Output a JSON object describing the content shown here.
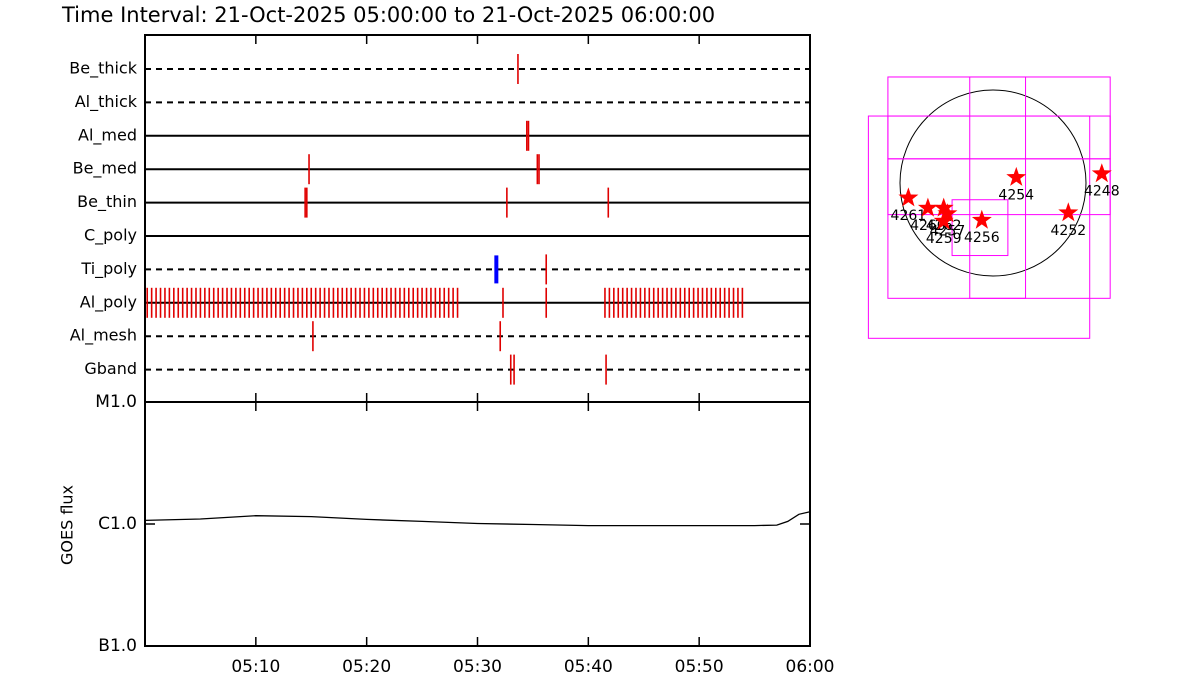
{
  "chart_data": [
    {
      "type": "timeline",
      "title": "Time Interval: 21-Oct-2025 05:00:00 to 21-Oct-2025 06:00:00",
      "xlim": [
        0,
        60
      ],
      "rows": [
        {
          "label": "Be_thick",
          "dashed": true,
          "groups": [
            {
              "color": "#e00000",
              "x": [
                33.65
              ]
            }
          ]
        },
        {
          "label": "Al_thick",
          "dashed": true,
          "groups": []
        },
        {
          "label": "Al_med",
          "dashed": false,
          "groups": [
            {
              "color": "#e00000",
              "x": [
                34.45,
                34.6
              ]
            }
          ]
        },
        {
          "label": "Be_med",
          "dashed": false,
          "groups": [
            {
              "color": "#e00000",
              "x": [
                14.8,
                35.4,
                35.55
              ]
            }
          ]
        },
        {
          "label": "Be_thin",
          "dashed": false,
          "groups": [
            {
              "color": "#e00000",
              "x": [
                14.45,
                14.6,
                32.65,
                41.8
              ]
            }
          ]
        },
        {
          "label": "C_poly",
          "dashed": false,
          "groups": []
        },
        {
          "label": "Ti_poly",
          "dashed": true,
          "groups": [
            {
              "color": "#0000ff",
              "x": [
                31.7
              ]
            },
            {
              "color": "#e00000",
              "x": [
                36.2
              ]
            }
          ]
        },
        {
          "label": "Al_poly",
          "dashed": false,
          "groups": [
            {
              "color": "#e00000",
              "x": [
                0.2,
                0.6,
                1,
                1.4,
                1.8,
                2.2,
                2.6,
                3,
                3.4,
                3.8,
                4.2,
                4.6,
                5,
                5.4,
                5.8,
                6.2,
                6.6,
                7,
                7.4,
                7.8,
                8.2,
                8.6,
                9,
                9.4,
                9.8,
                10.2,
                10.6,
                11,
                11.4,
                11.8,
                12.2,
                12.6,
                13,
                13.4,
                13.8,
                14.2,
                14.6,
                15,
                15.4,
                15.8,
                16.2,
                16.6,
                17,
                17.4,
                17.8,
                18.2,
                18.6,
                19,
                19.4,
                19.8,
                20.2,
                20.6,
                21,
                21.4,
                21.8,
                22.2,
                22.6,
                23,
                23.4,
                23.8,
                24.2,
                24.6,
                25,
                25.4,
                25.8,
                26.2,
                26.6,
                27,
                27.4,
                27.8,
                28.2,
                32.3,
                36.2,
                41.5,
                41.9,
                42.3,
                42.7,
                43.1,
                43.5,
                43.9,
                44.3,
                44.7,
                45.1,
                45.5,
                45.9,
                46.3,
                46.7,
                47.1,
                47.5,
                47.9,
                48.3,
                48.7,
                49.1,
                49.5,
                49.9,
                50.3,
                50.7,
                51.1,
                51.5,
                51.9,
                52.3,
                52.7,
                53.1,
                53.5,
                53.9
              ]
            }
          ]
        },
        {
          "label": "Al_mesh",
          "dashed": true,
          "groups": [
            {
              "color": "#e00000",
              "x": [
                15.15,
                32.05
              ]
            }
          ]
        },
        {
          "label": "Gband",
          "dashed": true,
          "groups": [
            {
              "color": "#e00000",
              "x": [
                33.0,
                33.3,
                41.6
              ]
            }
          ]
        }
      ]
    },
    {
      "type": "line",
      "ylabel": "GOES flux",
      "log_scale": true,
      "color": "#000000",
      "xlim": [
        0,
        60
      ],
      "xticks": [
        {
          "value": 10,
          "label": "05:10"
        },
        {
          "value": 20,
          "label": "05:20"
        },
        {
          "value": 30,
          "label": "05:30"
        },
        {
          "value": 40,
          "label": "05:40"
        },
        {
          "value": 50,
          "label": "05:50"
        },
        {
          "value": 60,
          "label": "06:00"
        }
      ],
      "ylim": [
        1e-07,
        1e-05
      ],
      "yticks": [
        {
          "value": 1e-07,
          "label": "B1.0"
        },
        {
          "value": 1e-06,
          "label": "C1.0"
        },
        {
          "value": 1e-05,
          "label": "M1.0"
        }
      ],
      "x": [
        0,
        5,
        10,
        15,
        20,
        25,
        30,
        35,
        40,
        45,
        50,
        55,
        57,
        58,
        59,
        60
      ],
      "values": [
        1.07e-06,
        1.1e-06,
        1.17e-06,
        1.15e-06,
        1.09e-06,
        1.05e-06,
        1.01e-06,
        9.9e-07,
        9.7e-07,
        9.7e-07,
        9.7e-07,
        9.7e-07,
        9.8e-07,
        1.05e-06,
        1.2e-06,
        1.26e-06
      ]
    },
    {
      "type": "map",
      "disk_radius": 1,
      "star_color": "#ff0000",
      "box_color": "#ff00ff",
      "boxes": [
        [
          -1.34,
          0.72,
          1.04,
          -1.67
        ],
        [
          -1.13,
          1.14,
          1.26,
          -1.24
        ],
        [
          -0.25,
          1.14,
          0.35,
          -1.24
        ],
        [
          -1.13,
          0.72,
          1.26,
          0.26
        ],
        [
          -1.13,
          0.26,
          1.26,
          -0.34
        ],
        [
          -0.44,
          -0.18,
          0.16,
          -0.78
        ]
      ],
      "points": [
        {
          "label": "4261",
          "x": -0.91,
          "y": -0.16
        },
        {
          "label": "4260",
          "x": -0.7,
          "y": -0.27
        },
        {
          "label": "4262",
          "x": -0.53,
          "y": -0.27
        },
        {
          "label": "4257",
          "x": -0.49,
          "y": -0.33
        },
        {
          "label": "4259",
          "x": -0.53,
          "y": -0.41
        },
        {
          "label": "4256",
          "x": -0.12,
          "y": -0.4
        },
        {
          "label": "4254",
          "x": 0.25,
          "y": 0.06
        },
        {
          "label": "4252",
          "x": 0.81,
          "y": -0.32
        },
        {
          "label": "4248",
          "x": 1.17,
          "y": 0.1
        }
      ]
    }
  ]
}
